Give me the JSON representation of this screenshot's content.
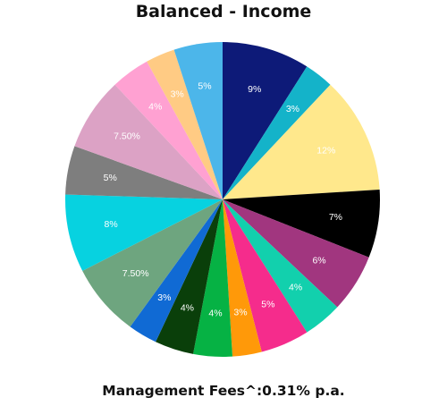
{
  "header": {
    "title": "Balanced - Income"
  },
  "footer": {
    "fees": "Management Fees^:0.31% p.a."
  },
  "chart_data": {
    "type": "pie",
    "title": "Balanced - Income",
    "start": "12 o'clock",
    "direction": "clockwise",
    "slices": [
      {
        "value": 9,
        "label": "9%",
        "color": "#0d1a78",
        "label_color": "#ffffff"
      },
      {
        "value": 3,
        "label": "3%",
        "color": "#14b3c9",
        "label_color": "#ffffff"
      },
      {
        "value": 12,
        "label": "12%",
        "color": "#ffe88c",
        "label_color": "#ffffff"
      },
      {
        "value": 7,
        "label": "7%",
        "color": "#000000",
        "label_color": "#ffffff"
      },
      {
        "value": 6,
        "label": "6%",
        "color": "#a1367f",
        "label_color": "#ffffff"
      },
      {
        "value": 4,
        "label": "4%",
        "color": "#12d0ad",
        "label_color": "#ffffff"
      },
      {
        "value": 5,
        "label": "5%",
        "color": "#f52c8c",
        "label_color": "#ffffff"
      },
      {
        "value": 3,
        "label": "3%",
        "color": "#ff9909",
        "label_color": "#ffffff"
      },
      {
        "value": 4,
        "label": "4%",
        "color": "#06b244",
        "label_color": "#ffffff"
      },
      {
        "value": 4,
        "label": "4%",
        "color": "#0a3f0a",
        "label_color": "#ffffff"
      },
      {
        "value": 3,
        "label": "3%",
        "color": "#106ad4",
        "label_color": "#ffffff"
      },
      {
        "value": 7.5,
        "label": "7.50%",
        "color": "#6ea57f",
        "label_color": "#ffffff"
      },
      {
        "value": 8,
        "label": "8%",
        "color": "#07d2e0",
        "label_color": "#ffffff"
      },
      {
        "value": 5,
        "label": "5%",
        "color": "#7e7e7e",
        "label_color": "#ffffff"
      },
      {
        "value": 7.5,
        "label": "7.50%",
        "color": "#dca2c5",
        "label_color": "#ffffff"
      },
      {
        "value": 4,
        "label": "4%",
        "color": "#ffa1d2",
        "label_color": "#ffffff"
      },
      {
        "value": 3,
        "label": "3%",
        "color": "#ffcb84",
        "label_color": "#ffffff"
      },
      {
        "value": 5,
        "label": "5%",
        "color": "#4cb6ea",
        "label_color": "#ffffff"
      }
    ]
  }
}
